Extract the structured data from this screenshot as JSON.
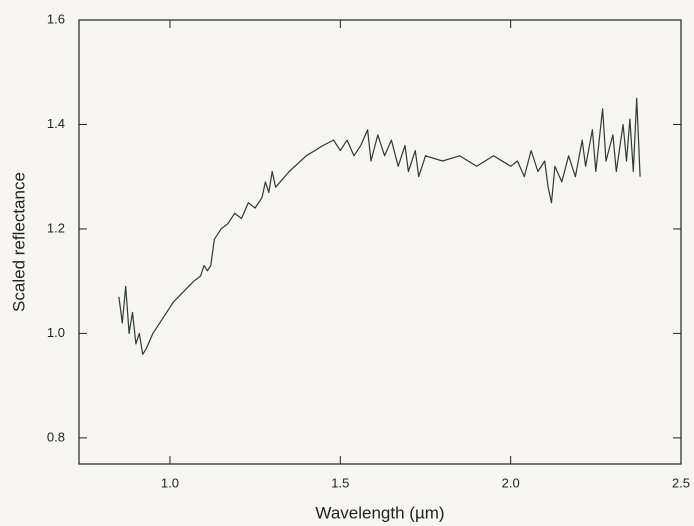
{
  "chart_data": {
    "type": "line",
    "x_label": "Wavelength (µm)",
    "y_label": "Scaled reflectance",
    "xlim": [
      0.733,
      2.5
    ],
    "ylim": [
      0.75,
      1.6
    ],
    "xticks": [
      {
        "value": 1,
        "label": "1.0"
      },
      1.5,
      {
        "value": 2,
        "label": "2.0"
      },
      2.5
    ],
    "yticks": [
      0.8,
      {
        "value": 1,
        "label": "1.0"
      },
      1.2,
      1.4,
      1.6
    ],
    "x": [
      0.85,
      0.86,
      0.87,
      0.88,
      0.89,
      0.9,
      0.91,
      0.92,
      0.93,
      0.95,
      0.98,
      1.01,
      1.04,
      1.07,
      1.09,
      1.1,
      1.11,
      1.12,
      1.13,
      1.15,
      1.17,
      1.19,
      1.21,
      1.23,
      1.25,
      1.27,
      1.28,
      1.29,
      1.3,
      1.31,
      1.35,
      1.4,
      1.45,
      1.48,
      1.5,
      1.52,
      1.54,
      1.56,
      1.58,
      1.59,
      1.61,
      1.63,
      1.65,
      1.67,
      1.69,
      1.7,
      1.72,
      1.73,
      1.75,
      1.8,
      1.85,
      1.9,
      1.95,
      2.0,
      2.02,
      2.04,
      2.06,
      2.08,
      2.1,
      2.11,
      2.12,
      2.13,
      2.15,
      2.17,
      2.19,
      2.21,
      2.22,
      2.24,
      2.25,
      2.27,
      2.28,
      2.3,
      2.31,
      2.33,
      2.34,
      2.35,
      2.36,
      2.37,
      2.38
    ],
    "series": [
      {
        "color": "#2f3a34",
        "values": [
          1.07,
          1.02,
          1.09,
          1.0,
          1.04,
          0.98,
          1.0,
          0.96,
          0.97,
          1.0,
          1.03,
          1.06,
          1.08,
          1.1,
          1.11,
          1.13,
          1.12,
          1.13,
          1.18,
          1.2,
          1.21,
          1.23,
          1.22,
          1.25,
          1.24,
          1.26,
          1.29,
          1.27,
          1.31,
          1.28,
          1.31,
          1.34,
          1.36,
          1.37,
          1.35,
          1.37,
          1.34,
          1.36,
          1.39,
          1.33,
          1.38,
          1.34,
          1.37,
          1.32,
          1.36,
          1.31,
          1.35,
          1.3,
          1.34,
          1.33,
          1.34,
          1.32,
          1.34,
          1.32,
          1.33,
          1.3,
          1.35,
          1.31,
          1.33,
          1.28,
          1.25,
          1.32,
          1.29,
          1.34,
          1.3,
          1.37,
          1.32,
          1.39,
          1.31,
          1.43,
          1.33,
          1.38,
          1.31,
          1.4,
          1.33,
          1.41,
          1.31,
          1.45,
          1.3
        ]
      }
    ]
  }
}
